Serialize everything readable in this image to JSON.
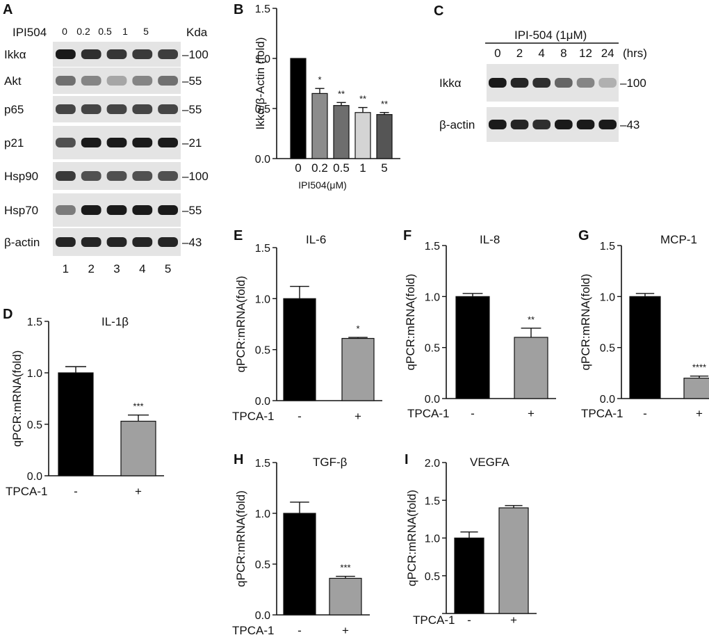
{
  "panels": {
    "A": {
      "letter": "A",
      "treatment_label": "IPI504",
      "doses": [
        "0",
        "0.2",
        "0.5",
        "1",
        "5"
      ],
      "kda_label": "Kda",
      "rows": [
        {
          "protein": "Ikkα",
          "marker": "–100",
          "intensity": [
            0.95,
            0.85,
            0.82,
            0.8,
            0.78
          ]
        },
        {
          "protein": "Akt",
          "marker": "–55",
          "intensity": [
            0.55,
            0.45,
            0.3,
            0.45,
            0.55
          ]
        },
        {
          "protein": "p65",
          "marker": "–55",
          "intensity": [
            0.75,
            0.75,
            0.75,
            0.75,
            0.75
          ]
        },
        {
          "protein": "p21",
          "marker": "–21",
          "intensity": [
            0.7,
            0.95,
            0.95,
            0.95,
            0.95
          ]
        },
        {
          "protein": "Hsp90",
          "marker": "–100",
          "intensity": [
            0.8,
            0.7,
            0.7,
            0.7,
            0.7
          ]
        },
        {
          "protein": "Hsp70",
          "marker": "–55",
          "intensity": [
            0.5,
            0.95,
            0.95,
            0.95,
            0.95
          ]
        },
        {
          "protein": "β-actin",
          "marker": "–43",
          "intensity": [
            0.9,
            0.9,
            0.9,
            0.9,
            0.9
          ]
        }
      ],
      "lanes": [
        "1",
        "2",
        "3",
        "4",
        "5"
      ]
    },
    "C": {
      "letter": "C",
      "treatment_label": "IPI-504 (1μM)",
      "times": [
        "0",
        "2",
        "4",
        "8",
        "12",
        "24"
      ],
      "time_unit": "(hrs)",
      "rows": [
        {
          "protein": "Ikkα",
          "marker": "–100",
          "intensity": [
            0.95,
            0.9,
            0.85,
            0.6,
            0.45,
            0.25
          ]
        },
        {
          "protein": "β-actin",
          "marker": "–43",
          "intensity": [
            0.95,
            0.9,
            0.85,
            0.95,
            0.95,
            0.95
          ]
        }
      ]
    }
  },
  "chart_data": [
    {
      "id": "B",
      "type": "bar",
      "letter": "B",
      "title": "",
      "ylabel": "Ikkα/β-Actin (fold)",
      "xlabel": "IPI504(μM)",
      "categories": [
        "0",
        "0.2",
        "0.5",
        "1",
        "5"
      ],
      "values": [
        1.0,
        0.65,
        0.53,
        0.46,
        0.44
      ],
      "errors": [
        0,
        0.05,
        0.03,
        0.05,
        0.02
      ],
      "sig": [
        "",
        "*",
        "**",
        "**",
        "**"
      ],
      "colors": [
        "#000000",
        "#8c8c8c",
        "#6e6e6e",
        "#d4d4d4",
        "#555555"
      ],
      "ylim": [
        0,
        1.5
      ],
      "yticks": [
        "0.0",
        "0.5",
        "1.0",
        "1.5"
      ]
    },
    {
      "id": "D",
      "type": "bar",
      "letter": "D",
      "title": "IL-1β",
      "ylabel": "qPCR:mRNA(fold)",
      "treatment": "TPCA-1",
      "categories": [
        "-",
        "+"
      ],
      "values": [
        1.0,
        0.53
      ],
      "errors": [
        0.06,
        0.06
      ],
      "sig": [
        "",
        "***"
      ],
      "colors": [
        "#000000",
        "#a0a0a0"
      ],
      "ylim": [
        0,
        1.5
      ],
      "yticks": [
        "0.0",
        "0.5",
        "1.0",
        "1.5"
      ]
    },
    {
      "id": "E",
      "type": "bar",
      "letter": "E",
      "title": "IL-6",
      "ylabel": "qPCR:mRNA(fold)",
      "treatment": "TPCA-1",
      "categories": [
        "-",
        "+"
      ],
      "values": [
        1.0,
        0.61
      ],
      "errors": [
        0.12,
        0.01
      ],
      "sig": [
        "",
        "*"
      ],
      "colors": [
        "#000000",
        "#a0a0a0"
      ],
      "ylim": [
        0,
        1.5
      ],
      "yticks": [
        "0.0",
        "0.5",
        "1.0",
        "1.5"
      ]
    },
    {
      "id": "F",
      "type": "bar",
      "letter": "F",
      "title": "IL-8",
      "ylabel": "qPCR:mRNA(fold)",
      "treatment": "TPCA-1",
      "categories": [
        "-",
        "+"
      ],
      "values": [
        1.0,
        0.6
      ],
      "errors": [
        0.03,
        0.09
      ],
      "sig": [
        "",
        "**"
      ],
      "colors": [
        "#000000",
        "#a0a0a0"
      ],
      "ylim": [
        0,
        1.5
      ],
      "yticks": [
        "0.0",
        "0.5",
        "1.0",
        "1.5"
      ]
    },
    {
      "id": "G",
      "type": "bar",
      "letter": "G",
      "title": "MCP-1",
      "ylabel": "qPCR:mRNA(fold)",
      "treatment": "TPCA-1",
      "categories": [
        "-",
        "+"
      ],
      "values": [
        1.0,
        0.2
      ],
      "errors": [
        0.03,
        0.02
      ],
      "sig": [
        "",
        "****"
      ],
      "colors": [
        "#000000",
        "#a0a0a0"
      ],
      "ylim": [
        0,
        1.5
      ],
      "yticks": [
        "0.0",
        "0.5",
        "1.0",
        "1.5"
      ]
    },
    {
      "id": "H",
      "type": "bar",
      "letter": "H",
      "title": "TGF-β",
      "ylabel": "qPCR:mRNA(fold)",
      "treatment": "TPCA-1",
      "categories": [
        "-",
        "+"
      ],
      "values": [
        1.0,
        0.36
      ],
      "errors": [
        0.11,
        0.02
      ],
      "sig": [
        "",
        "***"
      ],
      "colors": [
        "#000000",
        "#a0a0a0"
      ],
      "ylim": [
        0,
        1.5
      ],
      "yticks": [
        "0.0",
        "0.5",
        "1.0",
        "1.5"
      ]
    },
    {
      "id": "I",
      "type": "bar",
      "letter": "I",
      "title": "VEGFA",
      "ylabel": "qPCR:mRNA(fold)",
      "treatment": "TPCA-1",
      "categories": [
        "-",
        "+"
      ],
      "values": [
        1.0,
        1.4
      ],
      "errors": [
        0.08,
        0.03
      ],
      "sig": [
        "",
        ""
      ],
      "colors": [
        "#000000",
        "#a0a0a0"
      ],
      "ylim": [
        0,
        2.0
      ],
      "yticks": [
        "0.5",
        "1.0",
        "1.5",
        "2.0"
      ]
    }
  ]
}
